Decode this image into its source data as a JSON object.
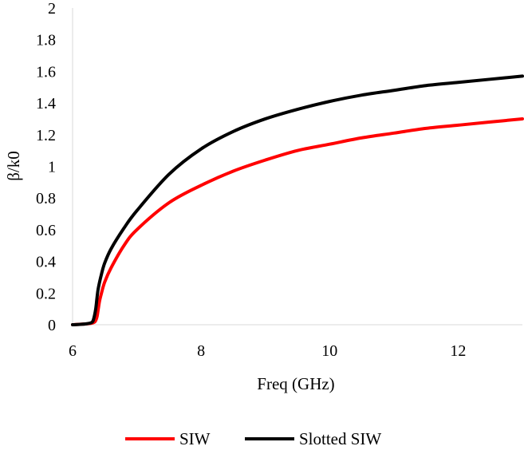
{
  "chart_data": {
    "type": "line",
    "title": "",
    "xlabel": "Freq (GHz)",
    "ylabel": "β/k0",
    "xlim": [
      6,
      13
    ],
    "ylim": [
      0,
      2
    ],
    "xticks": [
      "6",
      "8",
      "10",
      "12"
    ],
    "yticks": [
      "0",
      "0.2",
      "0.4",
      "0.6",
      "0.8",
      "1",
      "1.2",
      "1.4",
      "1.6",
      "1.8",
      "2"
    ],
    "grid": false,
    "legend_position": "bottom",
    "series": [
      {
        "name": "SIW",
        "color": "#ff0000",
        "x": [
          6.0,
          6.2,
          6.3,
          6.35,
          6.38,
          6.4,
          6.42,
          6.45,
          6.5,
          6.6,
          6.8,
          7.0,
          7.5,
          8.0,
          8.5,
          9.0,
          9.5,
          10.0,
          10.5,
          11.0,
          11.5,
          12.0,
          12.5,
          13.0
        ],
        "y": [
          0.0,
          0.005,
          0.01,
          0.02,
          0.05,
          0.1,
          0.15,
          0.2,
          0.27,
          0.36,
          0.5,
          0.6,
          0.77,
          0.88,
          0.97,
          1.04,
          1.1,
          1.14,
          1.18,
          1.21,
          1.24,
          1.26,
          1.28,
          1.3
        ]
      },
      {
        "name": "Slotted SIW",
        "color": "#000000",
        "x": [
          6.0,
          6.2,
          6.3,
          6.33,
          6.36,
          6.38,
          6.4,
          6.45,
          6.5,
          6.6,
          6.8,
          7.0,
          7.5,
          8.0,
          8.5,
          9.0,
          9.5,
          10.0,
          10.5,
          11.0,
          11.5,
          12.0,
          12.5,
          13.0
        ],
        "y": [
          0.0,
          0.005,
          0.015,
          0.04,
          0.1,
          0.17,
          0.23,
          0.32,
          0.39,
          0.48,
          0.61,
          0.72,
          0.95,
          1.11,
          1.22,
          1.3,
          1.36,
          1.41,
          1.45,
          1.48,
          1.51,
          1.53,
          1.55,
          1.57
        ]
      }
    ]
  }
}
